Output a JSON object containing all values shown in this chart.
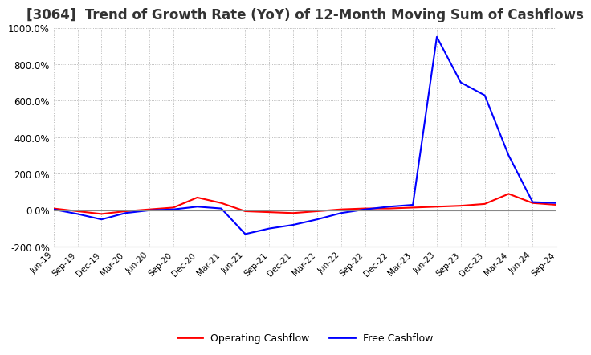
{
  "title": "[3064]  Trend of Growth Rate (YoY) of 12-Month Moving Sum of Cashflows",
  "title_fontsize": 12,
  "ylim": [
    -200,
    1000
  ],
  "yticks": [
    -200,
    0,
    200,
    400,
    600,
    800,
    1000
  ],
  "background_color": "#ffffff",
  "grid_color": "#aaaaaa",
  "legend_labels": [
    "Operating Cashflow",
    "Free Cashflow"
  ],
  "legend_colors": [
    "#ff0000",
    "#0000ff"
  ],
  "x_labels": [
    "Jun-19",
    "Sep-19",
    "Dec-19",
    "Mar-20",
    "Jun-20",
    "Sep-20",
    "Dec-20",
    "Mar-21",
    "Jun-21",
    "Sep-21",
    "Dec-21",
    "Mar-22",
    "Jun-22",
    "Sep-22",
    "Dec-22",
    "Mar-23",
    "Jun-23",
    "Sep-23",
    "Dec-23",
    "Mar-24",
    "Jun-24",
    "Sep-24"
  ],
  "operating_cashflow": [
    10,
    -5,
    -20,
    -5,
    5,
    15,
    70,
    40,
    -5,
    -10,
    -15,
    -5,
    5,
    10,
    10,
    15,
    20,
    25,
    35,
    90,
    40,
    30
  ],
  "free_cashflow": [
    5,
    -20,
    -50,
    -15,
    0,
    5,
    20,
    10,
    -130,
    -100,
    -80,
    -50,
    -15,
    5,
    20,
    30,
    950,
    700,
    630,
    300,
    45,
    40
  ]
}
